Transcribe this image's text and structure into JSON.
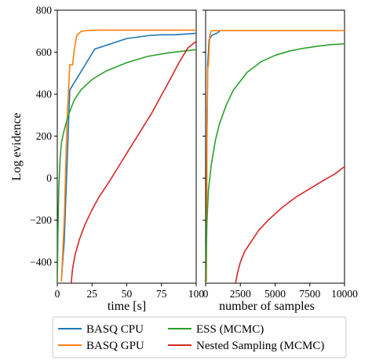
{
  "chart_data": [
    {
      "type": "line",
      "panel": "left",
      "xlabel": "time [s]",
      "ylabel": "Log evidence",
      "xlim": [
        0,
        100
      ],
      "ylim": [
        -500,
        800
      ],
      "xticks": [
        0,
        25,
        50,
        75,
        100
      ],
      "yticks": [
        -400,
        -200,
        0,
        200,
        400,
        600,
        800
      ],
      "xtick_labels": [
        "0",
        "25",
        "50",
        "75",
        "100"
      ],
      "ytick_labels": [
        "−400",
        "−200",
        "0",
        "200",
        "400",
        "600",
        "800"
      ],
      "grid": false,
      "series": [
        {
          "name": "BASQ CPU",
          "color": "#1f77b4",
          "x": [
            3,
            5,
            9,
            27,
            50,
            67,
            75,
            85,
            100
          ],
          "y": [
            -480,
            -300,
            420,
            615,
            665,
            680,
            683,
            683,
            690
          ]
        },
        {
          "name": "BASQ GPU",
          "color": "#ff7f0e",
          "x": [
            3,
            5,
            7,
            9,
            11,
            12,
            14,
            17,
            20,
            30,
            50,
            100
          ],
          "y": [
            -490,
            -200,
            270,
            540,
            540,
            600,
            680,
            698,
            703,
            705,
            705,
            705
          ]
        },
        {
          "name": "ESS (MCMC)",
          "color": "#2ca02c",
          "x": [
            0,
            0.5,
            1,
            2,
            3,
            5,
            8,
            12,
            17,
            25,
            35,
            50,
            65,
            80,
            100
          ],
          "y": [
            -500,
            -250,
            -60,
            90,
            170,
            230,
            300,
            370,
            420,
            470,
            510,
            550,
            580,
            597,
            612
          ]
        },
        {
          "name": "Nested Sampling (MCMC)",
          "color": "#d62728",
          "x": [
            10,
            11,
            13,
            16,
            20,
            25,
            30,
            38,
            45,
            52,
            60,
            68,
            75,
            82,
            88,
            94,
            100
          ],
          "y": [
            -500,
            -430,
            -360,
            -290,
            -220,
            -150,
            -90,
            -10,
            65,
            140,
            225,
            310,
            395,
            480,
            555,
            620,
            652
          ]
        }
      ]
    },
    {
      "type": "line",
      "panel": "right",
      "xlabel": "number of samples",
      "ylabel": "",
      "xlim": [
        0,
        10000
      ],
      "ylim": [
        -500,
        800
      ],
      "xticks": [
        0,
        2500,
        5000,
        7500,
        10000
      ],
      "xtick_labels": [
        "0",
        "2500",
        "5000",
        "7500",
        "10000"
      ],
      "grid": false,
      "series": [
        {
          "name": "BASQ CPU",
          "color": "#1f77b4",
          "x": [
            50,
            100,
            150,
            250,
            350,
            450,
            600,
            800,
            1000
          ],
          "y": [
            -480,
            250,
            540,
            660,
            670,
            680,
            685,
            690,
            700
          ]
        },
        {
          "name": "BASQ GPU",
          "color": "#ff7f0e",
          "x": [
            50,
            100,
            150,
            200,
            300,
            400,
            500,
            10000
          ],
          "y": [
            -490,
            200,
            520,
            540,
            680,
            700,
            703,
            703
          ]
        },
        {
          "name": "ESS (MCMC)",
          "color": "#2ca02c",
          "x": [
            0,
            50,
            100,
            200,
            400,
            700,
            1000,
            1500,
            2000,
            3000,
            4000,
            5000,
            6000,
            7000,
            8000,
            9000,
            10000
          ],
          "y": [
            -500,
            -350,
            -200,
            -60,
            60,
            180,
            260,
            350,
            420,
            505,
            555,
            585,
            605,
            618,
            628,
            636,
            640
          ]
        },
        {
          "name": "Nested Sampling (MCMC)",
          "color": "#d62728",
          "x": [
            2150,
            2300,
            2500,
            2800,
            3200,
            3800,
            4500,
            5500,
            6500,
            7500,
            8500,
            9300,
            10000
          ],
          "y": [
            -500,
            -450,
            -400,
            -350,
            -310,
            -250,
            -200,
            -140,
            -90,
            -50,
            -10,
            20,
            55
          ]
        }
      ]
    }
  ],
  "legend": {
    "position": "bottom",
    "entries": [
      {
        "label": "BASQ CPU",
        "color": "#1f77b4"
      },
      {
        "label": "ESS (MCMC)",
        "color": "#2ca02c"
      },
      {
        "label": "BASQ GPU",
        "color": "#ff7f0e"
      },
      {
        "label": "Nested Sampling (MCMC)",
        "color": "#d62728"
      }
    ]
  }
}
